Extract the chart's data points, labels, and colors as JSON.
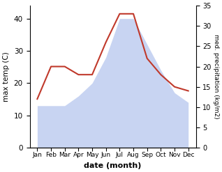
{
  "months": [
    "Jan",
    "Feb",
    "Mar",
    "Apr",
    "May",
    "Jun",
    "Jul",
    "Aug",
    "Sep",
    "Oct",
    "Nov",
    "Dec"
  ],
  "max_temp": [
    13,
    13,
    13,
    16,
    20,
    28,
    40,
    40,
    32,
    24,
    17,
    14
  ],
  "precipitation": [
    12,
    20,
    20,
    18,
    18,
    26,
    33,
    33,
    22,
    18,
    15,
    14
  ],
  "temp_fill_color": "#c8d4f2",
  "precip_color": "#c0392b",
  "xlabel": "date (month)",
  "ylabel_left": "max temp (C)",
  "ylabel_right": "med. precipitation (kg/m2)",
  "ylim_left": [
    0,
    44
  ],
  "ylim_right": [
    0,
    35
  ],
  "yticks_left": [
    0,
    10,
    20,
    30,
    40
  ],
  "yticks_right": [
    0,
    5,
    10,
    15,
    20,
    25,
    30,
    35
  ],
  "bg_color": "#ffffff"
}
